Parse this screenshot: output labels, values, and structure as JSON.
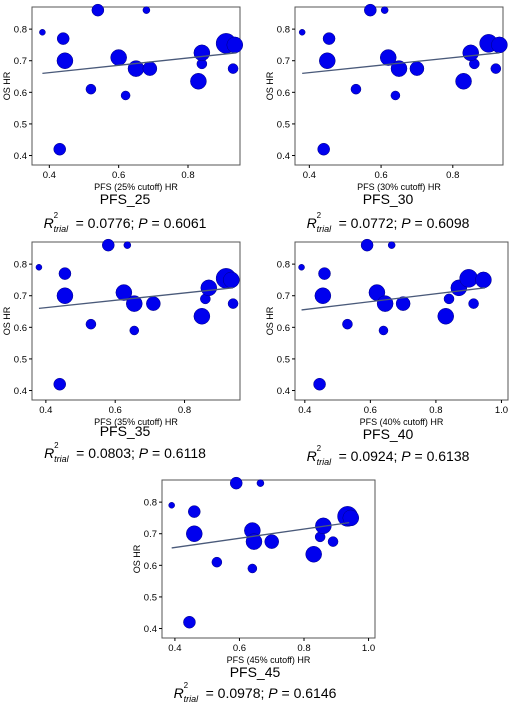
{
  "colors": {
    "point": "#0000EE",
    "trend": "#4A5A7A",
    "axis": "#000000",
    "frame": "#555555"
  },
  "chart_data": [
    {
      "type": "scatter",
      "title": "PFS_25",
      "xlabel": "PFS (25% cutoff) HR",
      "ylabel": "OS HR",
      "xlim": [
        0.35,
        0.95
      ],
      "ylim": [
        0.37,
        0.87
      ],
      "xticks": [
        0.4,
        0.6,
        0.8
      ],
      "yticks": [
        0.4,
        0.5,
        0.6,
        0.7,
        0.8
      ],
      "trend": {
        "x": [
          0.38,
          0.94
        ],
        "y": [
          0.66,
          0.725
        ]
      },
      "points": [
        {
          "x": 0.38,
          "y": 0.79,
          "size": 3
        },
        {
          "x": 0.43,
          "y": 0.42,
          "size": 6
        },
        {
          "x": 0.44,
          "y": 0.77,
          "size": 6
        },
        {
          "x": 0.445,
          "y": 0.7,
          "size": 8
        },
        {
          "x": 0.52,
          "y": 0.61,
          "size": 5
        },
        {
          "x": 0.54,
          "y": 0.86,
          "size": 6
        },
        {
          "x": 0.6,
          "y": 0.71,
          "size": 8
        },
        {
          "x": 0.62,
          "y": 0.59,
          "size": 4.5
        },
        {
          "x": 0.65,
          "y": 0.675,
          "size": 8
        },
        {
          "x": 0.68,
          "y": 0.86,
          "size": 3.5
        },
        {
          "x": 0.69,
          "y": 0.675,
          "size": 7
        },
        {
          "x": 0.83,
          "y": 0.635,
          "size": 8
        },
        {
          "x": 0.84,
          "y": 0.69,
          "size": 5
        },
        {
          "x": 0.84,
          "y": 0.725,
          "size": 8
        },
        {
          "x": 0.91,
          "y": 0.755,
          "size": 10
        },
        {
          "x": 0.93,
          "y": 0.675,
          "size": 5
        },
        {
          "x": 0.935,
          "y": 0.75,
          "size": 8
        }
      ],
      "stat": {
        "r2": "0.0776",
        "p": "0.6061"
      }
    },
    {
      "type": "scatter",
      "title": "PFS_30",
      "xlabel": "PFS (30% cutoff) HR",
      "ylabel": "OS HR",
      "xlim": [
        0.36,
        0.94
      ],
      "ylim": [
        0.37,
        0.87
      ],
      "xticks": [
        0.4,
        0.6,
        0.8
      ],
      "yticks": [
        0.4,
        0.5,
        0.6,
        0.7,
        0.8
      ],
      "trend": {
        "x": [
          0.38,
          0.93
        ],
        "y": [
          0.66,
          0.725
        ]
      },
      "points": [
        {
          "x": 0.38,
          "y": 0.79,
          "size": 3
        },
        {
          "x": 0.44,
          "y": 0.42,
          "size": 6
        },
        {
          "x": 0.455,
          "y": 0.77,
          "size": 6
        },
        {
          "x": 0.45,
          "y": 0.7,
          "size": 8
        },
        {
          "x": 0.53,
          "y": 0.61,
          "size": 5
        },
        {
          "x": 0.57,
          "y": 0.86,
          "size": 6
        },
        {
          "x": 0.62,
          "y": 0.71,
          "size": 8
        },
        {
          "x": 0.64,
          "y": 0.59,
          "size": 4.5
        },
        {
          "x": 0.65,
          "y": 0.675,
          "size": 8
        },
        {
          "x": 0.61,
          "y": 0.86,
          "size": 3.5
        },
        {
          "x": 0.7,
          "y": 0.675,
          "size": 7
        },
        {
          "x": 0.83,
          "y": 0.635,
          "size": 8
        },
        {
          "x": 0.86,
          "y": 0.69,
          "size": 5
        },
        {
          "x": 0.85,
          "y": 0.725,
          "size": 8
        },
        {
          "x": 0.9,
          "y": 0.755,
          "size": 9
        },
        {
          "x": 0.92,
          "y": 0.675,
          "size": 5
        },
        {
          "x": 0.93,
          "y": 0.75,
          "size": 8
        }
      ],
      "stat": {
        "r2": "0.0772",
        "p": "0.6098"
      }
    },
    {
      "type": "scatter",
      "title": "PFS_35",
      "xlabel": "PFS (35% cutoff) HR",
      "ylabel": "OS HR",
      "xlim": [
        0.36,
        0.96
      ],
      "ylim": [
        0.37,
        0.87
      ],
      "xticks": [
        0.4,
        0.6,
        0.8
      ],
      "yticks": [
        0.4,
        0.5,
        0.6,
        0.7,
        0.8
      ],
      "trend": {
        "x": [
          0.38,
          0.94
        ],
        "y": [
          0.66,
          0.725
        ]
      },
      "points": [
        {
          "x": 0.38,
          "y": 0.79,
          "size": 3
        },
        {
          "x": 0.44,
          "y": 0.42,
          "size": 6
        },
        {
          "x": 0.455,
          "y": 0.77,
          "size": 6
        },
        {
          "x": 0.455,
          "y": 0.7,
          "size": 8
        },
        {
          "x": 0.53,
          "y": 0.61,
          "size": 5
        },
        {
          "x": 0.58,
          "y": 0.86,
          "size": 6
        },
        {
          "x": 0.625,
          "y": 0.71,
          "size": 8
        },
        {
          "x": 0.655,
          "y": 0.59,
          "size": 4.5
        },
        {
          "x": 0.655,
          "y": 0.675,
          "size": 8
        },
        {
          "x": 0.635,
          "y": 0.86,
          "size": 3.5
        },
        {
          "x": 0.71,
          "y": 0.675,
          "size": 7
        },
        {
          "x": 0.85,
          "y": 0.635,
          "size": 8
        },
        {
          "x": 0.86,
          "y": 0.69,
          "size": 5
        },
        {
          "x": 0.87,
          "y": 0.725,
          "size": 8
        },
        {
          "x": 0.92,
          "y": 0.755,
          "size": 10
        },
        {
          "x": 0.94,
          "y": 0.675,
          "size": 5
        },
        {
          "x": 0.935,
          "y": 0.75,
          "size": 8
        }
      ],
      "stat": {
        "r2": "0.0803",
        "p": "0.6118"
      }
    },
    {
      "type": "scatter",
      "title": "PFS_40",
      "xlabel": "PFS (40% cutoff) HR",
      "ylabel": "OS HR",
      "xlim": [
        0.37,
        1.02
      ],
      "ylim": [
        0.37,
        0.87
      ],
      "xticks": [
        0.4,
        0.6,
        0.8,
        1.0
      ],
      "yticks": [
        0.4,
        0.5,
        0.6,
        0.7,
        0.8
      ],
      "trend": {
        "x": [
          0.39,
          0.95
        ],
        "y": [
          0.655,
          0.725
        ]
      },
      "points": [
        {
          "x": 0.39,
          "y": 0.79,
          "size": 3
        },
        {
          "x": 0.445,
          "y": 0.42,
          "size": 6
        },
        {
          "x": 0.46,
          "y": 0.77,
          "size": 6
        },
        {
          "x": 0.455,
          "y": 0.7,
          "size": 8
        },
        {
          "x": 0.53,
          "y": 0.61,
          "size": 5
        },
        {
          "x": 0.59,
          "y": 0.86,
          "size": 6
        },
        {
          "x": 0.62,
          "y": 0.71,
          "size": 8
        },
        {
          "x": 0.64,
          "y": 0.59,
          "size": 4.5
        },
        {
          "x": 0.645,
          "y": 0.675,
          "size": 8
        },
        {
          "x": 0.665,
          "y": 0.86,
          "size": 3.5
        },
        {
          "x": 0.7,
          "y": 0.675,
          "size": 7
        },
        {
          "x": 0.83,
          "y": 0.635,
          "size": 8
        },
        {
          "x": 0.84,
          "y": 0.69,
          "size": 5
        },
        {
          "x": 0.87,
          "y": 0.725,
          "size": 8
        },
        {
          "x": 0.9,
          "y": 0.755,
          "size": 9
        },
        {
          "x": 0.915,
          "y": 0.675,
          "size": 5
        },
        {
          "x": 0.945,
          "y": 0.75,
          "size": 8
        }
      ],
      "stat": {
        "r2": "0.0924",
        "p": "0.6138"
      }
    },
    {
      "type": "scatter",
      "title": "PFS_45",
      "xlabel": "PFS (45% cutoff) HR",
      "ylabel": "OS HR",
      "xlim": [
        0.36,
        1.02
      ],
      "ylim": [
        0.37,
        0.87
      ],
      "xticks": [
        0.4,
        0.6,
        0.8,
        1.0
      ],
      "yticks": [
        0.4,
        0.5,
        0.6,
        0.7,
        0.8
      ],
      "trend": {
        "x": [
          0.39,
          0.94
        ],
        "y": [
          0.655,
          0.735
        ]
      },
      "points": [
        {
          "x": 0.39,
          "y": 0.79,
          "size": 3
        },
        {
          "x": 0.445,
          "y": 0.42,
          "size": 6
        },
        {
          "x": 0.46,
          "y": 0.77,
          "size": 6
        },
        {
          "x": 0.46,
          "y": 0.7,
          "size": 8
        },
        {
          "x": 0.53,
          "y": 0.61,
          "size": 5
        },
        {
          "x": 0.59,
          "y": 0.86,
          "size": 6
        },
        {
          "x": 0.64,
          "y": 0.71,
          "size": 8
        },
        {
          "x": 0.64,
          "y": 0.59,
          "size": 4.5
        },
        {
          "x": 0.645,
          "y": 0.675,
          "size": 8
        },
        {
          "x": 0.665,
          "y": 0.86,
          "size": 3.5
        },
        {
          "x": 0.7,
          "y": 0.675,
          "size": 7
        },
        {
          "x": 0.83,
          "y": 0.635,
          "size": 8
        },
        {
          "x": 0.85,
          "y": 0.69,
          "size": 5
        },
        {
          "x": 0.86,
          "y": 0.725,
          "size": 8
        },
        {
          "x": 0.89,
          "y": 0.675,
          "size": 5
        },
        {
          "x": 0.935,
          "y": 0.755,
          "size": 10
        },
        {
          "x": 0.945,
          "y": 0.75,
          "size": 8
        }
      ],
      "stat": {
        "r2": "0.0978",
        "p": "0.6146"
      }
    }
  ]
}
